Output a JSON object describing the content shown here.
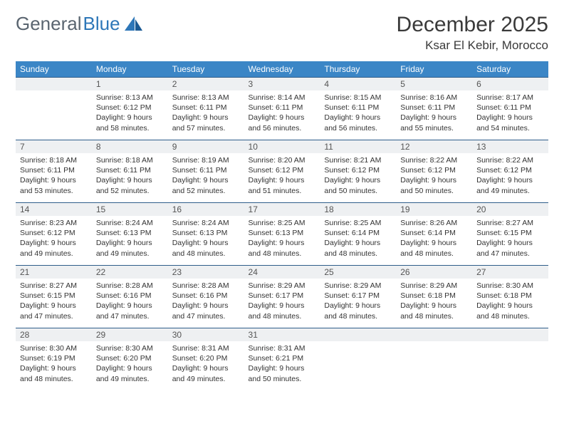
{
  "logo": {
    "text1": "General",
    "text2": "Blue",
    "color1": "#5a6570",
    "color2": "#2e77b8"
  },
  "header": {
    "title": "December 2025",
    "location": "Ksar El Kebir, Morocco"
  },
  "colors": {
    "header_bg": "#3b86c6",
    "header_text": "#ffffff",
    "daybar_bg": "#eef0f2",
    "daybar_border": "#2e5d8a",
    "body_text": "#333333"
  },
  "weekdays": [
    "Sunday",
    "Monday",
    "Tuesday",
    "Wednesday",
    "Thursday",
    "Friday",
    "Saturday"
  ],
  "first_weekday_offset": 1,
  "days": [
    {
      "n": 1,
      "sunrise": "8:13 AM",
      "sunset": "6:12 PM",
      "daylight": "9 hours and 58 minutes."
    },
    {
      "n": 2,
      "sunrise": "8:13 AM",
      "sunset": "6:11 PM",
      "daylight": "9 hours and 57 minutes."
    },
    {
      "n": 3,
      "sunrise": "8:14 AM",
      "sunset": "6:11 PM",
      "daylight": "9 hours and 56 minutes."
    },
    {
      "n": 4,
      "sunrise": "8:15 AM",
      "sunset": "6:11 PM",
      "daylight": "9 hours and 56 minutes."
    },
    {
      "n": 5,
      "sunrise": "8:16 AM",
      "sunset": "6:11 PM",
      "daylight": "9 hours and 55 minutes."
    },
    {
      "n": 6,
      "sunrise": "8:17 AM",
      "sunset": "6:11 PM",
      "daylight": "9 hours and 54 minutes."
    },
    {
      "n": 7,
      "sunrise": "8:18 AM",
      "sunset": "6:11 PM",
      "daylight": "9 hours and 53 minutes."
    },
    {
      "n": 8,
      "sunrise": "8:18 AM",
      "sunset": "6:11 PM",
      "daylight": "9 hours and 52 minutes."
    },
    {
      "n": 9,
      "sunrise": "8:19 AM",
      "sunset": "6:11 PM",
      "daylight": "9 hours and 52 minutes."
    },
    {
      "n": 10,
      "sunrise": "8:20 AM",
      "sunset": "6:12 PM",
      "daylight": "9 hours and 51 minutes."
    },
    {
      "n": 11,
      "sunrise": "8:21 AM",
      "sunset": "6:12 PM",
      "daylight": "9 hours and 50 minutes."
    },
    {
      "n": 12,
      "sunrise": "8:22 AM",
      "sunset": "6:12 PM",
      "daylight": "9 hours and 50 minutes."
    },
    {
      "n": 13,
      "sunrise": "8:22 AM",
      "sunset": "6:12 PM",
      "daylight": "9 hours and 49 minutes."
    },
    {
      "n": 14,
      "sunrise": "8:23 AM",
      "sunset": "6:12 PM",
      "daylight": "9 hours and 49 minutes."
    },
    {
      "n": 15,
      "sunrise": "8:24 AM",
      "sunset": "6:13 PM",
      "daylight": "9 hours and 49 minutes."
    },
    {
      "n": 16,
      "sunrise": "8:24 AM",
      "sunset": "6:13 PM",
      "daylight": "9 hours and 48 minutes."
    },
    {
      "n": 17,
      "sunrise": "8:25 AM",
      "sunset": "6:13 PM",
      "daylight": "9 hours and 48 minutes."
    },
    {
      "n": 18,
      "sunrise": "8:25 AM",
      "sunset": "6:14 PM",
      "daylight": "9 hours and 48 minutes."
    },
    {
      "n": 19,
      "sunrise": "8:26 AM",
      "sunset": "6:14 PM",
      "daylight": "9 hours and 48 minutes."
    },
    {
      "n": 20,
      "sunrise": "8:27 AM",
      "sunset": "6:15 PM",
      "daylight": "9 hours and 47 minutes."
    },
    {
      "n": 21,
      "sunrise": "8:27 AM",
      "sunset": "6:15 PM",
      "daylight": "9 hours and 47 minutes."
    },
    {
      "n": 22,
      "sunrise": "8:28 AM",
      "sunset": "6:16 PM",
      "daylight": "9 hours and 47 minutes."
    },
    {
      "n": 23,
      "sunrise": "8:28 AM",
      "sunset": "6:16 PM",
      "daylight": "9 hours and 47 minutes."
    },
    {
      "n": 24,
      "sunrise": "8:29 AM",
      "sunset": "6:17 PM",
      "daylight": "9 hours and 48 minutes."
    },
    {
      "n": 25,
      "sunrise": "8:29 AM",
      "sunset": "6:17 PM",
      "daylight": "9 hours and 48 minutes."
    },
    {
      "n": 26,
      "sunrise": "8:29 AM",
      "sunset": "6:18 PM",
      "daylight": "9 hours and 48 minutes."
    },
    {
      "n": 27,
      "sunrise": "8:30 AM",
      "sunset": "6:18 PM",
      "daylight": "9 hours and 48 minutes."
    },
    {
      "n": 28,
      "sunrise": "8:30 AM",
      "sunset": "6:19 PM",
      "daylight": "9 hours and 48 minutes."
    },
    {
      "n": 29,
      "sunrise": "8:30 AM",
      "sunset": "6:20 PM",
      "daylight": "9 hours and 49 minutes."
    },
    {
      "n": 30,
      "sunrise": "8:31 AM",
      "sunset": "6:20 PM",
      "daylight": "9 hours and 49 minutes."
    },
    {
      "n": 31,
      "sunrise": "8:31 AM",
      "sunset": "6:21 PM",
      "daylight": "9 hours and 50 minutes."
    }
  ],
  "labels": {
    "sunrise": "Sunrise:",
    "sunset": "Sunset:",
    "daylight": "Daylight:"
  }
}
